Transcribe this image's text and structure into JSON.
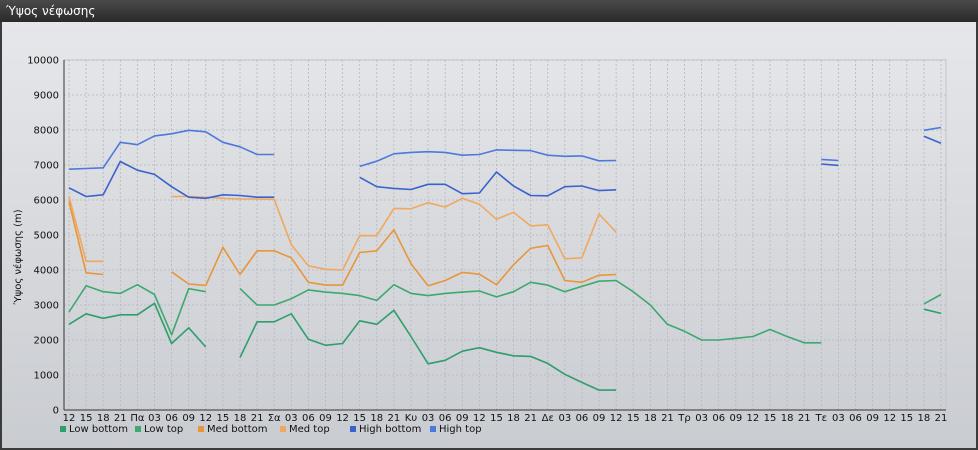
{
  "window": {
    "title": "Ύψος νέφωσης"
  },
  "chart_data": {
    "type": "line",
    "title": "",
    "xlabel": "",
    "ylabel": "Ύψος νέφωσης (m)",
    "ylim": [
      0,
      10000
    ],
    "yticks": [
      0,
      1000,
      2000,
      3000,
      4000,
      5000,
      6000,
      7000,
      8000,
      9000,
      10000
    ],
    "grid": true,
    "legend_position": "bottom-left",
    "categories": [
      "12",
      "15",
      "18",
      "21",
      "Πα",
      "03",
      "06",
      "09",
      "12",
      "15",
      "18",
      "21",
      "Σα",
      "03",
      "06",
      "09",
      "12",
      "15",
      "18",
      "21",
      "Κυ",
      "03",
      "06",
      "09",
      "12",
      "15",
      "18",
      "21",
      "Δε",
      "03",
      "06",
      "09",
      "12",
      "15",
      "18",
      "21",
      "Τρ",
      "03",
      "06",
      "09",
      "12",
      "15",
      "18",
      "21",
      "Τε",
      "03",
      "06",
      "09",
      "12",
      "15",
      "18",
      "21"
    ],
    "series": [
      {
        "name": "Low bottom",
        "color": "#2e9e6a",
        "values": [
          2450,
          2750,
          2620,
          2720,
          2720,
          3050,
          1900,
          2350,
          1800,
          null,
          1500,
          2520,
          2520,
          2750,
          2020,
          1850,
          1900,
          2550,
          2450,
          2850,
          2100,
          1320,
          1420,
          1680,
          1780,
          1650,
          1550,
          1530,
          1330,
          1020,
          790,
          570,
          570,
          null,
          null,
          null,
          null,
          null,
          null,
          null,
          null,
          null,
          null,
          null,
          null,
          null,
          null,
          null,
          null,
          null,
          2880,
          2760
        ]
      },
      {
        "name": "Low top",
        "color": "#3da86f",
        "values": [
          2800,
          3550,
          3380,
          3330,
          3580,
          3300,
          2150,
          3470,
          3380,
          null,
          3470,
          3000,
          3000,
          3180,
          3430,
          3370,
          3330,
          3270,
          3130,
          3580,
          3330,
          3270,
          3330,
          3370,
          3400,
          3230,
          3380,
          3650,
          3570,
          3380,
          3530,
          3680,
          3700,
          3380,
          3000,
          2450,
          2250,
          2000,
          2000,
          2050,
          2100,
          2300,
          2100,
          1920,
          1920,
          null,
          null,
          null,
          null,
          null,
          3030,
          3300
        ]
      },
      {
        "name": "Med bottom",
        "color": "#e8963a",
        "values": [
          5950,
          3920,
          3870,
          null,
          null,
          null,
          3950,
          3600,
          3560,
          4650,
          3870,
          4550,
          4550,
          4350,
          3650,
          3570,
          3570,
          4500,
          4550,
          5150,
          4180,
          3550,
          3700,
          3930,
          3880,
          3580,
          4150,
          4620,
          4700,
          3700,
          3650,
          3850,
          3870,
          null,
          null,
          null,
          null,
          null,
          null,
          null,
          null,
          null,
          null,
          null,
          null,
          null,
          null,
          null,
          null,
          null,
          null,
          null
        ]
      },
      {
        "name": "Med top",
        "color": "#f0a860",
        "values": [
          6100,
          4250,
          4250,
          null,
          null,
          null,
          6100,
          6100,
          6080,
          6050,
          6030,
          6030,
          6020,
          4720,
          4120,
          4020,
          4000,
          4980,
          4980,
          5760,
          5750,
          5920,
          5800,
          6050,
          5880,
          5450,
          5650,
          5260,
          5290,
          4320,
          4350,
          5600,
          5080,
          null,
          null,
          null,
          null,
          null,
          null,
          null,
          null,
          null,
          null,
          null,
          null,
          null,
          null,
          null,
          null,
          null,
          null,
          null
        ]
      },
      {
        "name": "High bottom",
        "color": "#3a62cc",
        "values": [
          6350,
          6100,
          6150,
          7100,
          6850,
          6730,
          6380,
          6080,
          6050,
          6150,
          6130,
          6080,
          6080,
          null,
          null,
          null,
          null,
          6650,
          6380,
          6330,
          6300,
          6450,
          6450,
          6180,
          6200,
          6800,
          6400,
          6130,
          6120,
          6380,
          6400,
          6270,
          6290,
          null,
          null,
          null,
          null,
          null,
          null,
          null,
          null,
          null,
          null,
          null,
          7030,
          6990,
          null,
          null,
          null,
          null,
          7820,
          7620
        ]
      },
      {
        "name": "High top",
        "color": "#4d78dc",
        "values": [
          6880,
          6900,
          6920,
          7650,
          7580,
          7830,
          7890,
          7990,
          7950,
          7650,
          7520,
          7300,
          7300,
          null,
          null,
          null,
          null,
          6960,
          7110,
          7320,
          7360,
          7380,
          7360,
          7280,
          7300,
          7430,
          7420,
          7410,
          7280,
          7250,
          7260,
          7120,
          7130,
          null,
          null,
          null,
          null,
          null,
          null,
          null,
          null,
          null,
          null,
          null,
          7160,
          7130,
          null,
          null,
          null,
          null,
          7990,
          8070
        ]
      }
    ]
  }
}
